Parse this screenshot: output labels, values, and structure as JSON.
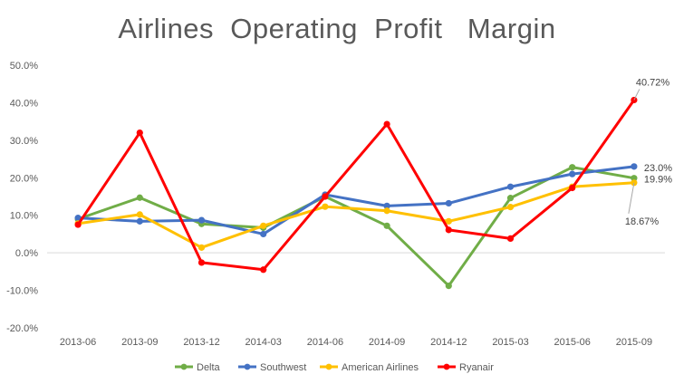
{
  "chart_data": {
    "type": "line",
    "title": "Airlines  Operating  Profit   Margin",
    "categories": [
      "2013-06",
      "2013-09",
      "2013-12",
      "2014-03",
      "2014-06",
      "2014-09",
      "2014-12",
      "2015-03",
      "2015-06",
      "2015-09"
    ],
    "y_ticks": [
      "-20.0%",
      "-10.0%",
      "0.0%",
      "10.0%",
      "20.0%",
      "30.0%",
      "40.0%",
      "50.0%"
    ],
    "ylim": [
      -20,
      50
    ],
    "y_unit": "%",
    "grid": false,
    "legend_position": "bottom",
    "series": [
      {
        "name": "Delta",
        "color": "#70ad47",
        "values": [
          9.0,
          14.7,
          7.7,
          6.7,
          15.0,
          7.2,
          -8.8,
          14.6,
          22.8,
          19.9
        ]
      },
      {
        "name": "Southwest",
        "color": "#4472c4",
        "values": [
          9.3,
          8.4,
          8.7,
          5.0,
          15.5,
          12.5,
          13.2,
          17.6,
          21.0,
          23.0
        ]
      },
      {
        "name": "American Airlines",
        "color": "#ffc000",
        "values": [
          7.8,
          10.2,
          1.4,
          7.2,
          12.3,
          11.2,
          8.4,
          12.2,
          17.6,
          18.67
        ]
      },
      {
        "name": "Ryanair",
        "color": "#ff0000",
        "values": [
          7.5,
          32.0,
          -2.6,
          -4.5,
          15.0,
          34.3,
          6.1,
          3.8,
          17.3,
          40.72
        ]
      }
    ],
    "annotations": [
      {
        "series": "Ryanair",
        "index": 9,
        "text": "40.72%"
      },
      {
        "series": "Southwest",
        "index": 9,
        "text": "23.0%"
      },
      {
        "series": "Delta",
        "index": 9,
        "text": "19.9%"
      },
      {
        "series": "American Airlines",
        "index": 9,
        "text": "18.67%"
      }
    ]
  }
}
